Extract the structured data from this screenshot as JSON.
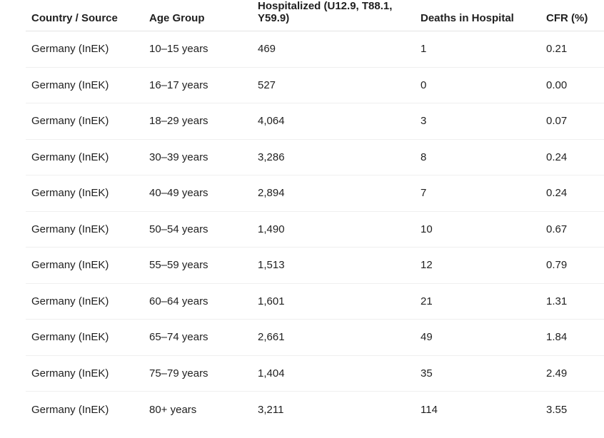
{
  "table": {
    "header": [
      "Country / Source",
      "Age Group",
      "Hospitalized (U12.9, T88.1, Y59.9)",
      "Deaths in Hospital",
      "CFR (%)"
    ],
    "rows": [
      [
        "Germany (InEK)",
        "10–15 years",
        "469",
        "1",
        "0.21"
      ],
      [
        "Germany (InEK)",
        "16–17 years",
        "527",
        "0",
        "0.00"
      ],
      [
        "Germany (InEK)",
        "18–29 years",
        "4,064",
        "3",
        "0.07"
      ],
      [
        "Germany (InEK)",
        "30–39 years",
        "3,286",
        "8",
        "0.24"
      ],
      [
        "Germany (InEK)",
        "40–49 years",
        "2,894",
        "7",
        "0.24"
      ],
      [
        "Germany (InEK)",
        "50–54 years",
        "1,490",
        "10",
        "0.67"
      ],
      [
        "Germany (InEK)",
        "55–59 years",
        "1,513",
        "12",
        "0.79"
      ],
      [
        "Germany (InEK)",
        "60–64 years",
        "1,601",
        "21",
        "1.31"
      ],
      [
        "Germany (InEK)",
        "65–74 years",
        "2,661",
        "49",
        "1.84"
      ],
      [
        "Germany (InEK)",
        "75–79 years",
        "1,404",
        "35",
        "2.49"
      ],
      [
        "Germany (InEK)",
        "80+ years",
        "3,211",
        "114",
        "3.55"
      ]
    ]
  }
}
